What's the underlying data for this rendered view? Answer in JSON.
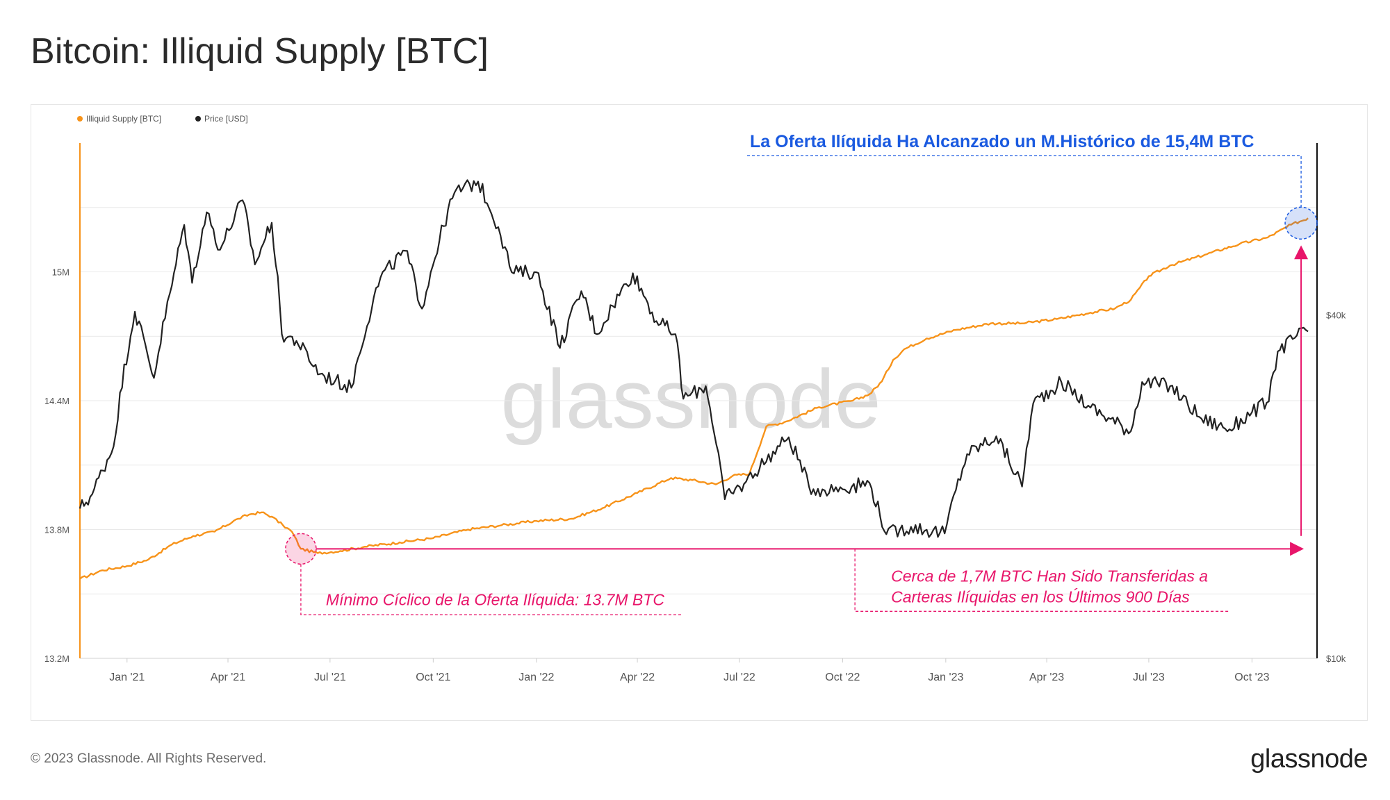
{
  "title": "Bitcoin: Illiquid Supply [BTC]",
  "footer": {
    "copyright": "© 2023 Glassnode. All Rights Reserved.",
    "logo": "glassnode"
  },
  "watermark": "glassnode",
  "colors": {
    "illiquid": "#f7931a",
    "price": "#222222",
    "highlight_blue": "#1a5ae0",
    "highlight_pink": "#e8156a",
    "grid": "#e9e9e9"
  },
  "chart_data": {
    "type": "line",
    "legend": [
      {
        "name": "Illiquid Supply [BTC]",
        "color": "#f7931a"
      },
      {
        "name": "Price [USD]",
        "color": "#222222"
      }
    ],
    "legend_position": "top-left",
    "grid": true,
    "x_range": [
      "2020-11-20",
      "2023-11-28"
    ],
    "x_ticks": [
      {
        "date": "2021-01-01",
        "label": "Jan '21"
      },
      {
        "date": "2021-04-01",
        "label": "Apr '21"
      },
      {
        "date": "2021-07-01",
        "label": "Jul '21"
      },
      {
        "date": "2021-10-01",
        "label": "Oct '21"
      },
      {
        "date": "2022-01-01",
        "label": "Jan '22"
      },
      {
        "date": "2022-04-01",
        "label": "Apr '22"
      },
      {
        "date": "2022-07-01",
        "label": "Jul '22"
      },
      {
        "date": "2022-10-01",
        "label": "Oct '22"
      },
      {
        "date": "2023-01-01",
        "label": "Jan '23"
      },
      {
        "date": "2023-04-01",
        "label": "Apr '23"
      },
      {
        "date": "2023-07-01",
        "label": "Jul '23"
      },
      {
        "date": "2023-10-01",
        "label": "Oct '23"
      }
    ],
    "y_left": {
      "range": [
        13.2,
        15.6
      ],
      "unit": "M BTC",
      "ticks": [
        {
          "value": 13.2,
          "label": "13.2M"
        },
        {
          "value": 13.8,
          "label": "13.8M"
        },
        {
          "value": 14.4,
          "label": "14.4M"
        },
        {
          "value": 15.0,
          "label": "15M"
        }
      ]
    },
    "y_right": {
      "scale": "log",
      "range": [
        10000,
        80000
      ],
      "unit": "USD",
      "ticks": [
        {
          "value": 10000,
          "label": "$10k"
        },
        {
          "value": 40000,
          "label": "$40k"
        }
      ]
    },
    "series": [
      {
        "name": "Illiquid Supply [BTC]",
        "axis": "left",
        "points": [
          [
            "2020-11-20",
            13.57
          ],
          [
            "2020-12-10",
            13.61
          ],
          [
            "2021-01-01",
            13.63
          ],
          [
            "2021-01-20",
            13.66
          ],
          [
            "2021-02-10",
            13.73
          ],
          [
            "2021-03-01",
            13.77
          ],
          [
            "2021-03-20",
            13.79
          ],
          [
            "2021-04-10",
            13.85
          ],
          [
            "2021-04-20",
            13.87
          ],
          [
            "2021-05-01",
            13.88
          ],
          [
            "2021-05-10",
            13.86
          ],
          [
            "2021-05-20",
            13.82
          ],
          [
            "2021-05-28",
            13.79
          ],
          [
            "2021-06-05",
            13.71
          ],
          [
            "2021-06-20",
            13.69
          ],
          [
            "2021-07-10",
            13.7
          ],
          [
            "2021-08-01",
            13.72
          ],
          [
            "2021-09-01",
            13.74
          ],
          [
            "2021-10-01",
            13.76
          ],
          [
            "2021-11-01",
            13.8
          ],
          [
            "2021-12-01",
            13.82
          ],
          [
            "2022-01-01",
            13.84
          ],
          [
            "2022-02-01",
            13.85
          ],
          [
            "2022-03-01",
            13.9
          ],
          [
            "2022-04-01",
            13.97
          ],
          [
            "2022-05-01",
            14.04
          ],
          [
            "2022-05-20",
            14.03
          ],
          [
            "2022-06-10",
            14.01
          ],
          [
            "2022-06-25",
            14.05
          ],
          [
            "2022-07-10",
            14.06
          ],
          [
            "2022-07-25",
            14.28
          ],
          [
            "2022-08-10",
            14.3
          ],
          [
            "2022-09-10",
            14.37
          ],
          [
            "2022-10-10",
            14.4
          ],
          [
            "2022-10-25",
            14.43
          ],
          [
            "2022-11-05",
            14.49
          ],
          [
            "2022-11-15",
            14.59
          ],
          [
            "2022-11-25",
            14.64
          ],
          [
            "2022-12-15",
            14.69
          ],
          [
            "2023-01-10",
            14.73
          ],
          [
            "2023-02-10",
            14.76
          ],
          [
            "2023-03-10",
            14.76
          ],
          [
            "2023-04-10",
            14.78
          ],
          [
            "2023-05-10",
            14.81
          ],
          [
            "2023-06-01",
            14.83
          ],
          [
            "2023-06-15",
            14.87
          ],
          [
            "2023-07-01",
            14.98
          ],
          [
            "2023-07-20",
            15.03
          ],
          [
            "2023-08-20",
            15.08
          ],
          [
            "2023-09-20",
            15.13
          ],
          [
            "2023-10-15",
            15.16
          ],
          [
            "2023-11-05",
            15.22
          ],
          [
            "2023-11-20",
            15.25
          ]
        ]
      },
      {
        "name": "Price [USD]",
        "axis": "right",
        "points": [
          [
            "2020-11-20",
            18300
          ],
          [
            "2020-12-01",
            19400
          ],
          [
            "2020-12-20",
            23500
          ],
          [
            "2021-01-08",
            40500
          ],
          [
            "2021-01-25",
            31000
          ],
          [
            "2021-02-10",
            45000
          ],
          [
            "2021-02-21",
            57500
          ],
          [
            "2021-02-28",
            45500
          ],
          [
            "2021-03-13",
            60500
          ],
          [
            "2021-03-25",
            52000
          ],
          [
            "2021-04-14",
            63500
          ],
          [
            "2021-04-25",
            49000
          ],
          [
            "2021-05-10",
            58000
          ],
          [
            "2021-05-19",
            37000
          ],
          [
            "2021-06-01",
            36000
          ],
          [
            "2021-06-22",
            31500
          ],
          [
            "2021-07-20",
            29800
          ],
          [
            "2021-08-15",
            46500
          ],
          [
            "2021-09-06",
            51800
          ],
          [
            "2021-09-21",
            41000
          ],
          [
            "2021-10-20",
            65500
          ],
          [
            "2021-11-10",
            68500
          ],
          [
            "2021-11-28",
            57000
          ],
          [
            "2021-12-10",
            47500
          ],
          [
            "2022-01-01",
            47500
          ],
          [
            "2022-01-22",
            35000
          ],
          [
            "2022-02-10",
            44000
          ],
          [
            "2022-02-24",
            37000
          ],
          [
            "2022-03-28",
            47300
          ],
          [
            "2022-04-18",
            39000
          ],
          [
            "2022-05-05",
            37000
          ],
          [
            "2022-05-12",
            28500
          ],
          [
            "2022-06-01",
            30000
          ],
          [
            "2022-06-18",
            19000
          ],
          [
            "2022-07-05",
            20200
          ],
          [
            "2022-08-14",
            24400
          ],
          [
            "2022-09-01",
            20000
          ],
          [
            "2022-09-15",
            19700
          ],
          [
            "2022-10-25",
            20300
          ],
          [
            "2022-11-09",
            16500
          ],
          [
            "2022-12-01",
            17000
          ],
          [
            "2022-12-31",
            16550
          ],
          [
            "2023-01-20",
            22800
          ],
          [
            "2023-02-15",
            24500
          ],
          [
            "2023-03-10",
            20000
          ],
          [
            "2023-03-20",
            28000
          ],
          [
            "2023-04-14",
            30500
          ],
          [
            "2023-05-10",
            27500
          ],
          [
            "2023-06-15",
            25000
          ],
          [
            "2023-06-25",
            30500
          ],
          [
            "2023-07-20",
            30000
          ],
          [
            "2023-08-17",
            26300
          ],
          [
            "2023-09-11",
            25200
          ],
          [
            "2023-10-01",
            27000
          ],
          [
            "2023-10-16",
            28200
          ],
          [
            "2023-10-24",
            34500
          ],
          [
            "2023-11-10",
            36800
          ],
          [
            "2023-11-20",
            37400
          ]
        ]
      }
    ],
    "annotations": {
      "ath_text": "La Oferta Ilíquida Ha Alcanzado un M.Histórico de 15,4M BTC",
      "min_text": "Mínimo Cíclico de la Oferta Ilíquida: 13.7M BTC",
      "transfer_text_line1": "Cerca de 1,7M BTC Han Sido Transferidas a",
      "transfer_text_line2": "Carteras Ilíquidas en los Últimos 900 Días"
    }
  }
}
